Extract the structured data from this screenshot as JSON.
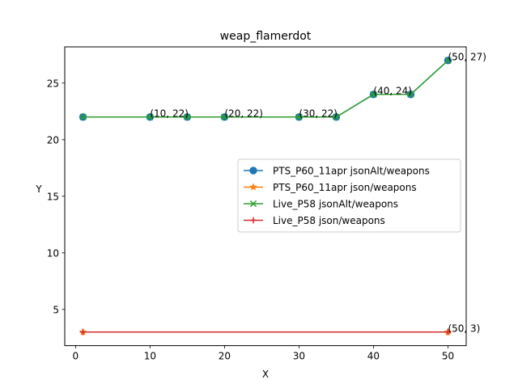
{
  "chart_data": {
    "type": "line",
    "title": "weap_flamerdot",
    "xlabel": "X",
    "ylabel": "Y",
    "xlim": [
      -1.45,
      52.45
    ],
    "ylim": [
      1.8,
      28.2
    ],
    "xticks": [
      0,
      10,
      20,
      30,
      40,
      50
    ],
    "yticks": [
      5,
      10,
      15,
      20,
      25
    ],
    "grid": false,
    "legend_position": "center-right",
    "series": [
      {
        "name": "PTS_P60_11apr jsonAlt/weapons",
        "color": "#1f77b4",
        "marker": "circle",
        "x": [
          1,
          10,
          15,
          20,
          30,
          35,
          40,
          45,
          50
        ],
        "y": [
          22,
          22,
          22,
          22,
          22,
          22,
          24,
          24,
          27
        ]
      },
      {
        "name": "PTS_P60_11apr json/weapons",
        "color": "#ff7f0e",
        "marker": "star",
        "x": [
          1,
          50
        ],
        "y": [
          3,
          3
        ]
      },
      {
        "name": "Live_P58 jsonAlt/weapons",
        "color": "#2ca02c",
        "marker": "x",
        "x": [
          1,
          10,
          15,
          20,
          30,
          35,
          40,
          45,
          50
        ],
        "y": [
          22,
          22,
          22,
          22,
          22,
          22,
          24,
          24,
          27
        ]
      },
      {
        "name": "Live_P58 json/weapons",
        "color": "#d62728",
        "marker": "plus",
        "x": [
          1,
          50
        ],
        "y": [
          3,
          3
        ]
      }
    ],
    "annotations": [
      {
        "text": "(10, 22)",
        "x": 10,
        "y": 22
      },
      {
        "text": "(20, 22)",
        "x": 20,
        "y": 22
      },
      {
        "text": "(30, 22)",
        "x": 30,
        "y": 22
      },
      {
        "text": "(40, 24)",
        "x": 40,
        "y": 24
      },
      {
        "text": "(50, 27)",
        "x": 50,
        "y": 27
      },
      {
        "text": "(50, 3)",
        "x": 50,
        "y": 3
      }
    ]
  }
}
